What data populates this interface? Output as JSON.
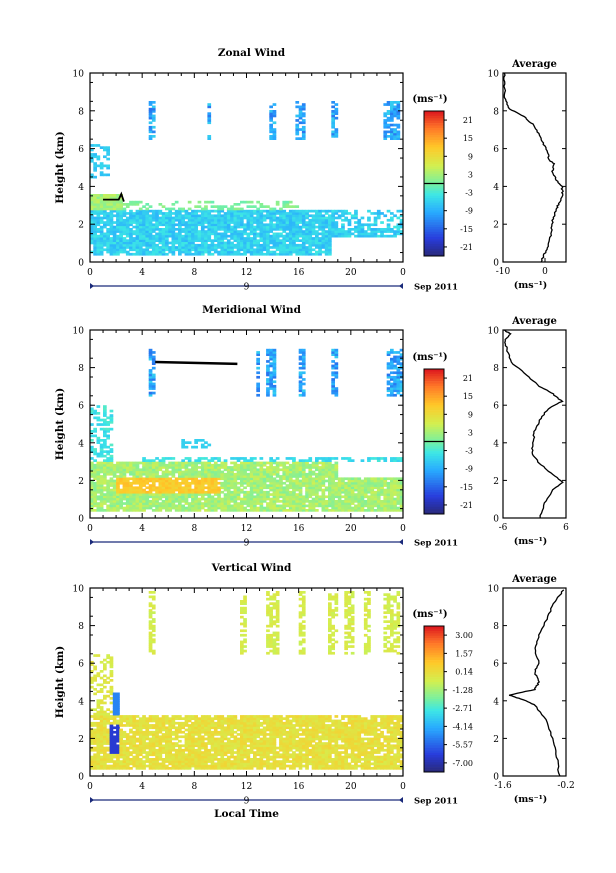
{
  "chart_data": [
    {
      "type": "heatmap",
      "title": "Zonal Wind",
      "xlabel": "",
      "ylabel": "Height (km)",
      "xticks": [
        "0",
        "4",
        "8",
        "12",
        "16",
        "20",
        "0"
      ],
      "yticks": [
        "0",
        "2",
        "4",
        "6",
        "8",
        "10"
      ],
      "ylim": [
        0,
        10
      ],
      "date_marker": "9",
      "date_label": "Sep 2011",
      "colorbar": {
        "unit": "(ms⁻¹)",
        "ticks": [
          "21",
          "15",
          "9",
          "3",
          "-3",
          "-9",
          "-15",
          "-21"
        ],
        "range": [
          -24,
          24
        ]
      },
      "average": {
        "title": "Average",
        "xticks": [
          "-10",
          "0"
        ],
        "xlim": [
          -10,
          5
        ],
        "xlabel": "(ms⁻¹)",
        "yticks": [
          "0",
          "2",
          "4",
          "6",
          "8",
          "10"
        ],
        "profile": [
          [
            -1,
            0
          ],
          [
            0,
            0.5
          ],
          [
            1,
            1
          ],
          [
            1.5,
            1.6
          ],
          [
            1.8,
            2.2
          ],
          [
            2.5,
            2.7
          ],
          [
            3.3,
            3.1
          ],
          [
            4.2,
            3.6
          ],
          [
            4,
            4
          ],
          [
            2.5,
            4.4
          ],
          [
            1.8,
            4.8
          ],
          [
            2.2,
            5.2
          ],
          [
            1,
            5.4
          ],
          [
            0.6,
            5.8
          ],
          [
            -0.4,
            6.3
          ],
          [
            -1.5,
            6.8
          ],
          [
            -3,
            7.3
          ],
          [
            -5,
            7.7
          ],
          [
            -8.5,
            8.1
          ],
          [
            -9.5,
            8.6
          ],
          [
            -9.6,
            9.3
          ],
          [
            -9.7,
            10
          ]
        ]
      }
    },
    {
      "type": "heatmap",
      "title": "Meridional Wind",
      "xlabel": "",
      "ylabel": "Height (km)",
      "xticks": [
        "0",
        "4",
        "8",
        "12",
        "16",
        "20",
        "0"
      ],
      "yticks": [
        "0",
        "2",
        "4",
        "6",
        "8",
        "10"
      ],
      "ylim": [
        0,
        10
      ],
      "date_marker": "9",
      "date_label": "Sep 2011",
      "colorbar": {
        "unit": "(ms⁻¹)",
        "ticks": [
          "21",
          "15",
          "9",
          "3",
          "-3",
          "-9",
          "-15",
          "-21"
        ],
        "range": [
          -24,
          24
        ]
      },
      "average": {
        "title": "Average",
        "xticks": [
          "-6",
          "6"
        ],
        "xlim": [
          -6,
          6
        ],
        "xlabel": "(ms⁻¹)",
        "yticks": [
          "0",
          "2",
          "4",
          "6",
          "8",
          "10"
        ],
        "profile": [
          [
            1,
            0
          ],
          [
            2,
            0.8
          ],
          [
            3.5,
            1.5
          ],
          [
            5.5,
            1.9
          ],
          [
            3,
            2.4
          ],
          [
            1,
            2.9
          ],
          [
            -0.5,
            3.4
          ],
          [
            -0.3,
            4
          ],
          [
            0,
            4.6
          ],
          [
            1,
            5.2
          ],
          [
            2.5,
            5.8
          ],
          [
            5.2,
            6.2
          ],
          [
            3.5,
            6.6
          ],
          [
            1,
            7
          ],
          [
            -1.5,
            7.6
          ],
          [
            -4.5,
            8.3
          ],
          [
            -5.3,
            9
          ],
          [
            -5.6,
            9.5
          ],
          [
            -4.6,
            9.8
          ],
          [
            -5.8,
            10
          ]
        ]
      }
    },
    {
      "type": "heatmap",
      "title": "Vertical Wind",
      "xlabel": "Local Time",
      "ylabel": "Height (km)",
      "xticks": [
        "0",
        "4",
        "8",
        "12",
        "16",
        "20",
        "0"
      ],
      "yticks": [
        "0",
        "2",
        "4",
        "6",
        "8",
        "10"
      ],
      "ylim": [
        0,
        10
      ],
      "date_marker": "9",
      "date_label": "Sep 2011",
      "colorbar": {
        "unit": "(ms⁻¹)",
        "ticks": [
          "3.00",
          "1.57",
          "0.14",
          "-1.28",
          "-2.71",
          "-4.14",
          "-5.57",
          "-7.00"
        ],
        "range": [
          -7.72,
          3.72
        ]
      },
      "average": {
        "title": "Average",
        "xticks": [
          "-1.6",
          "-0.2"
        ],
        "xlim": [
          -1.6,
          -0.2
        ],
        "xlabel": "(ms⁻¹)",
        "yticks": [
          "0",
          "2",
          "4",
          "6",
          "8",
          "10"
        ],
        "profile": [
          [
            -0.35,
            0
          ],
          [
            -0.4,
            1
          ],
          [
            -0.5,
            2
          ],
          [
            -0.65,
            3
          ],
          [
            -0.9,
            3.8
          ],
          [
            -1.2,
            4.1
          ],
          [
            -1.45,
            4.3
          ],
          [
            -0.9,
            4.6
          ],
          [
            -0.8,
            5
          ],
          [
            -0.9,
            5.5
          ],
          [
            -0.8,
            6
          ],
          [
            -0.9,
            6.8
          ],
          [
            -0.8,
            7.5
          ],
          [
            -0.6,
            8.5
          ],
          [
            -0.45,
            9.3
          ],
          [
            -0.25,
            9.9
          ]
        ]
      }
    }
  ]
}
